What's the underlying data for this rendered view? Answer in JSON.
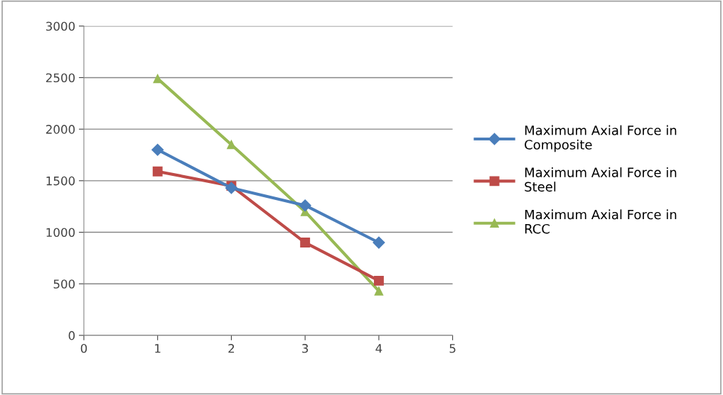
{
  "chart_data": {
    "type": "line",
    "x": [
      1,
      2,
      3,
      4
    ],
    "series": [
      {
        "name": "Maximum Axial Force in Composite",
        "color": "#4a7ebb",
        "marker": "diamond",
        "values": [
          1800,
          1430,
          1260,
          900
        ]
      },
      {
        "name": "Maximum Axial Force in Steel",
        "color": "#be4b48",
        "marker": "square",
        "values": [
          1590,
          1450,
          900,
          530
        ]
      },
      {
        "name": "Maximum Axial Force in RCC",
        "color": "#98b954",
        "marker": "triangle",
        "values": [
          2490,
          1850,
          1200,
          430
        ]
      }
    ],
    "xlim": [
      0,
      5
    ],
    "xticks": [
      0,
      1,
      2,
      3,
      4,
      5
    ],
    "ylim": [
      0,
      3000
    ],
    "yticks": [
      0,
      500,
      1000,
      1500,
      2000,
      2500,
      3000
    ],
    "grid": "y",
    "legend": "right",
    "line_style": "solid"
  }
}
